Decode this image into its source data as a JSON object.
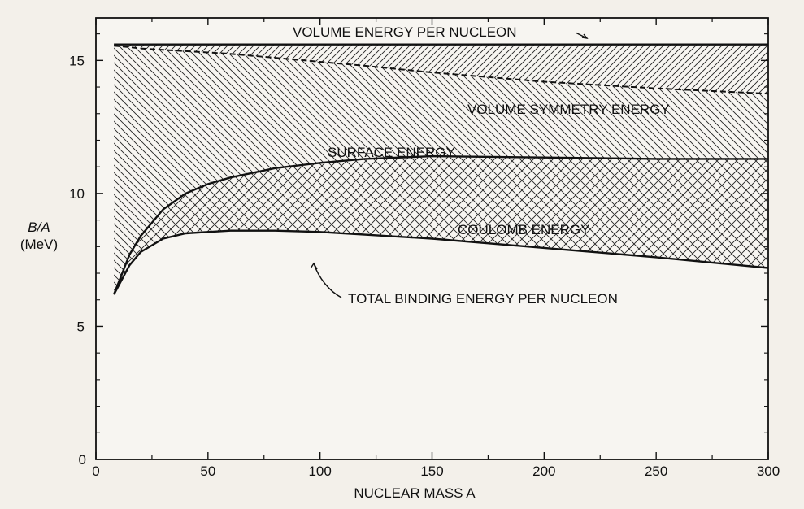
{
  "chart_data": {
    "type": "area",
    "title": "",
    "xlabel": "NUCLEAR MASS A",
    "ylabel": "B/A",
    "ylabel_unit": "(MeV)",
    "xlim": [
      0,
      300
    ],
    "ylim": [
      0,
      16.6
    ],
    "x_ticks": [
      0,
      50,
      100,
      150,
      200,
      250,
      300
    ],
    "y_ticks": [
      5,
      10,
      15
    ],
    "grid": false,
    "x": [
      8,
      15,
      20,
      30,
      40,
      50,
      60,
      80,
      100,
      120,
      150,
      200,
      250,
      300
    ],
    "series": [
      {
        "name": "VOLUME ENERGY PER NUCLEON",
        "values": [
          15.6,
          15.6,
          15.6,
          15.6,
          15.6,
          15.6,
          15.6,
          15.6,
          15.6,
          15.6,
          15.6,
          15.6,
          15.6,
          15.6
        ]
      },
      {
        "name": "VOLUME SYMMETRY ENERGY",
        "values": [
          15.55,
          15.5,
          15.45,
          15.4,
          15.35,
          15.3,
          15.25,
          15.1,
          14.95,
          14.8,
          14.55,
          14.2,
          13.95,
          13.75
        ]
      },
      {
        "name": "SURFACE ENERGY",
        "values": [
          6.2,
          7.7,
          8.4,
          9.4,
          10.0,
          10.35,
          10.6,
          10.95,
          11.15,
          11.3,
          11.4,
          11.35,
          11.3,
          11.3
        ]
      },
      {
        "name": "TOTAL BINDING ENERGY PER NUCLEON",
        "values": [
          6.2,
          7.3,
          7.8,
          8.3,
          8.5,
          8.55,
          8.6,
          8.6,
          8.55,
          8.45,
          8.3,
          7.95,
          7.6,
          7.2
        ]
      }
    ],
    "region_labels": [
      "VOLUME SYMMETRY ENERGY",
      "SURFACE ENERGY",
      "COULOMB ENERGY"
    ],
    "annotations": [
      "VOLUME ENERGY PER NUCLEON",
      "TOTAL BINDING ENERGY PER NUCLEON"
    ]
  }
}
